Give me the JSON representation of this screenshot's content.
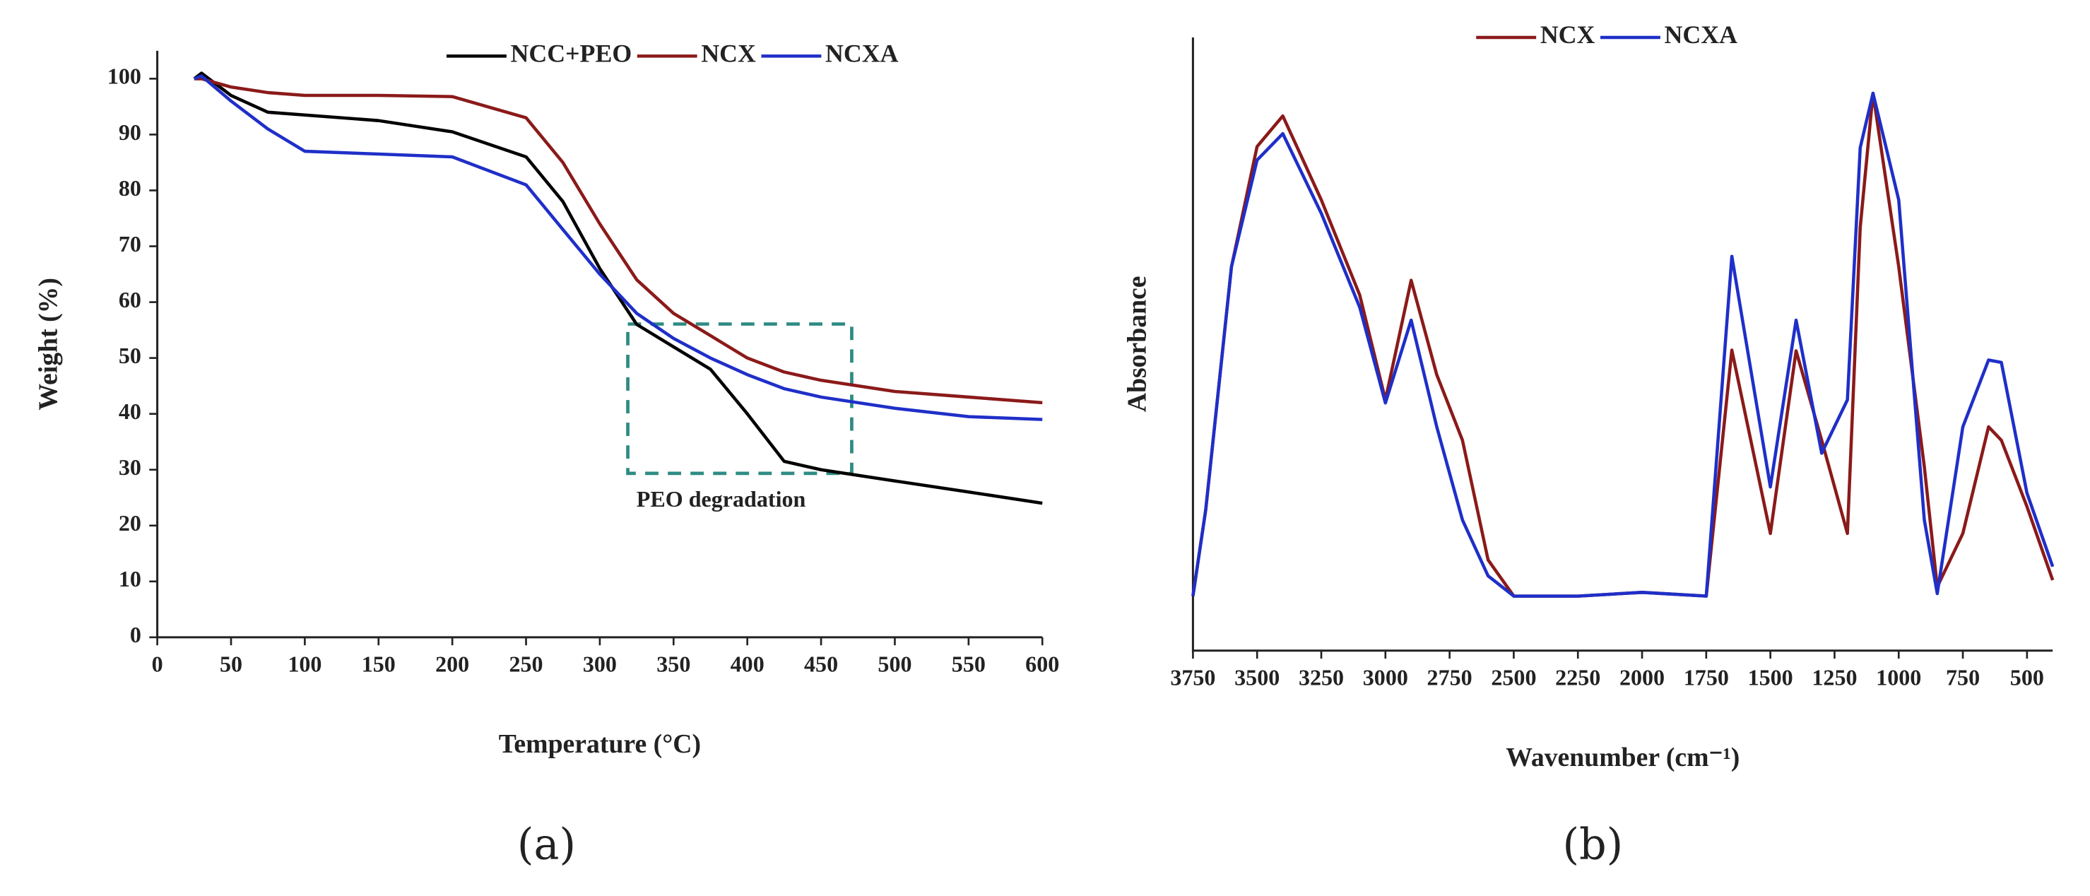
{
  "chart_data": [
    {
      "type": "line",
      "label": "(a)",
      "xlabel": "Temperature (°C)",
      "ylabel": "Weight (%)",
      "annotation": "PEO degradation",
      "x": [
        25,
        30,
        50,
        75,
        100,
        150,
        200,
        250,
        275,
        300,
        325,
        350,
        375,
        400,
        425,
        450,
        500,
        550,
        600
      ],
      "series": [
        {
          "name": "NCC+PEO",
          "color": "#000000",
          "values": [
            100,
            101,
            97,
            94,
            93.5,
            92.5,
            90.5,
            86,
            78,
            66,
            56,
            52,
            48,
            40,
            31.5,
            30,
            28,
            26,
            24
          ]
        },
        {
          "name": "NCX",
          "color": "#8b1a1a",
          "values": [
            100,
            100,
            98.5,
            97.5,
            97,
            97,
            96.8,
            93,
            85,
            74,
            64,
            58,
            54,
            50,
            47.5,
            46,
            44,
            43,
            42
          ]
        },
        {
          "name": "NCXA",
          "color": "#1f2fc8",
          "values": [
            100,
            100.5,
            96,
            91,
            87,
            86.5,
            86,
            81,
            73,
            65,
            58,
            53.5,
            50,
            47,
            44.5,
            43,
            41,
            39.5,
            39
          ]
        }
      ],
      "xlim": [
        0,
        600
      ],
      "xticks": [
        0,
        50,
        100,
        150,
        200,
        250,
        300,
        350,
        400,
        450,
        500,
        550,
        600
      ],
      "ylim": [
        0,
        105
      ],
      "yticks": [
        0,
        10,
        20,
        30,
        40,
        50,
        60,
        70,
        80,
        90,
        100
      ]
    },
    {
      "type": "line",
      "label": "(b)",
      "xlabel": "Wavenumber (cm⁻¹)",
      "ylabel": "Absorbance",
      "x": [
        3750,
        3700,
        3600,
        3500,
        3400,
        3250,
        3100,
        3000,
        2900,
        2800,
        2700,
        2600,
        2500,
        2250,
        2000,
        1750,
        1650,
        1500,
        1400,
        1300,
        1200,
        1150,
        1100,
        1000,
        900,
        850,
        750,
        650,
        600,
        500,
        400
      ],
      "series": [
        {
          "name": "NCX",
          "color": "#8b1a1a",
          "values": [
            8.9,
            23,
            62.6,
            82.2,
            87.2,
            73.5,
            58,
            40.9,
            60.4,
            45,
            34.3,
            14.8,
            8.9,
            8.9,
            9.5,
            8.9,
            49,
            19.1,
            48.9,
            34.3,
            19.1,
            69,
            90.9,
            62.6,
            30,
            10.4,
            19.1,
            36.5,
            34.3,
            23.5,
            11.5
          ]
        },
        {
          "name": "NCXA",
          "color": "#1f2fc8",
          "values": [
            8.9,
            23,
            62.6,
            80,
            84.3,
            71.3,
            56,
            40.4,
            53.9,
            36.5,
            21.3,
            12.2,
            8.9,
            8.9,
            9.5,
            8.9,
            64.3,
            26.7,
            53.9,
            32.2,
            40.9,
            82,
            90.9,
            73.5,
            21.3,
            9.3,
            36.5,
            47.4,
            47,
            25.7,
            13.7
          ]
        }
      ],
      "xlim": [
        3750,
        400
      ],
      "xticks": [
        3750,
        3500,
        3250,
        3000,
        2750,
        2500,
        2250,
        2000,
        1750,
        1500,
        1250,
        1000,
        750,
        500
      ],
      "ylim": [
        0,
        100
      ]
    }
  ]
}
